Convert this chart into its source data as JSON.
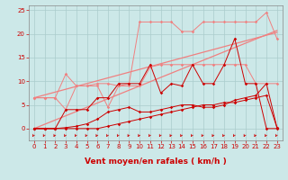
{
  "background_color": "#cce8e8",
  "grid_color": "#aacccc",
  "xlabel": "Vent moyen/en rafales ( km/h )",
  "xlim": [
    -0.5,
    23.5
  ],
  "ylim": [
    -2.5,
    26
  ],
  "yticks": [
    0,
    5,
    10,
    15,
    20,
    25
  ],
  "xticks": [
    0,
    1,
    2,
    3,
    4,
    5,
    6,
    7,
    8,
    9,
    10,
    11,
    12,
    13,
    14,
    15,
    16,
    17,
    18,
    19,
    20,
    21,
    22,
    23
  ],
  "x": [
    0,
    1,
    2,
    3,
    4,
    5,
    6,
    7,
    8,
    9,
    10,
    11,
    12,
    13,
    14,
    15,
    16,
    17,
    18,
    19,
    20,
    21,
    22,
    23
  ],
  "line_diag1": [
    0.0,
    0.9,
    1.8,
    2.7,
    3.6,
    4.5,
    5.4,
    6.3,
    7.2,
    8.1,
    9.0,
    9.9,
    10.8,
    11.7,
    12.6,
    13.5,
    14.4,
    15.3,
    16.2,
    17.1,
    18.0,
    18.9,
    19.8,
    20.7
  ],
  "line_diag2": [
    6.5,
    7.1,
    7.7,
    8.3,
    8.9,
    9.5,
    10.1,
    10.7,
    11.3,
    11.9,
    12.5,
    13.1,
    13.7,
    14.3,
    14.9,
    15.5,
    16.1,
    16.7,
    17.3,
    17.9,
    18.5,
    19.1,
    19.7,
    20.3
  ],
  "line_light_zigzag": [
    6.5,
    6.5,
    6.5,
    11.5,
    9.0,
    9.0,
    9.5,
    9.5,
    9.0,
    9.0,
    9.0,
    13.0,
    13.5,
    13.5,
    13.5,
    13.5,
    13.5,
    13.5,
    13.5,
    13.5,
    13.5,
    9.5,
    9.5,
    9.5
  ],
  "line_light_high": [
    6.5,
    6.5,
    6.5,
    4.0,
    9.0,
    9.0,
    9.0,
    4.5,
    9.0,
    9.5,
    22.5,
    22.5,
    22.5,
    22.5,
    20.5,
    20.5,
    22.5,
    22.5,
    22.5,
    22.5,
    22.5,
    22.5,
    24.5,
    19.0
  ],
  "line_dark1": [
    0.0,
    0.0,
    0.0,
    0.0,
    0.0,
    0.0,
    0.0,
    0.5,
    1.0,
    1.5,
    2.0,
    2.5,
    3.0,
    3.5,
    4.0,
    4.5,
    5.0,
    5.0,
    5.5,
    5.5,
    6.0,
    6.5,
    7.0,
    0.2
  ],
  "line_dark2": [
    0.0,
    0.0,
    0.0,
    0.2,
    0.5,
    1.0,
    2.0,
    3.5,
    4.0,
    4.5,
    3.5,
    3.5,
    4.0,
    4.5,
    5.0,
    5.0,
    4.5,
    4.5,
    5.0,
    6.0,
    6.5,
    7.0,
    9.5,
    0.2
  ],
  "line_dark3": [
    0.0,
    0.0,
    0.0,
    4.0,
    4.0,
    4.0,
    6.5,
    6.5,
    9.5,
    9.5,
    9.5,
    13.5,
    7.5,
    9.5,
    9.0,
    13.5,
    9.5,
    9.5,
    13.5,
    19.0,
    9.5,
    9.5,
    0.0,
    0.0
  ],
  "color_light": "#f08080",
  "color_dark": "#cc0000",
  "marker_size": 1.8,
  "tick_fontsize": 5,
  "label_fontsize": 6.5
}
